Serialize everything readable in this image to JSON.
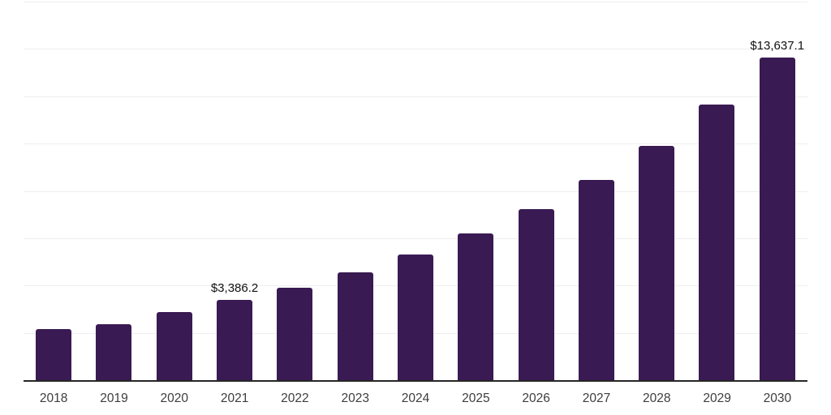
{
  "chart_data": {
    "type": "bar",
    "title": "",
    "xlabel": "",
    "ylabel": "",
    "categories": [
      "2018",
      "2019",
      "2020",
      "2021",
      "2022",
      "2023",
      "2024",
      "2025",
      "2026",
      "2027",
      "2028",
      "2029",
      "2030"
    ],
    "values": [
      2170,
      2380,
      2880,
      3386.2,
      3920,
      4560,
      5320,
      6200,
      7240,
      8450,
      9910,
      11650,
      13637.1
    ],
    "data_labels": {
      "2021": "$3,386.2",
      "2030": "$13,637.1"
    },
    "ylim": [
      0,
      16000
    ],
    "grid_step": 2000,
    "grid": "horizontal-only",
    "legend": "none",
    "note": "Only the 2021 and 2030 bars carry visible value labels; remaining values estimated from bar heights against gridlines.",
    "colors": {
      "bar": "#3a1a52",
      "axis_line": "#262626",
      "gridline": "#eeeef0",
      "data_label_text": "#111111",
      "tick_label_text": "#3d3d3d",
      "background": "#ffffff"
    }
  }
}
